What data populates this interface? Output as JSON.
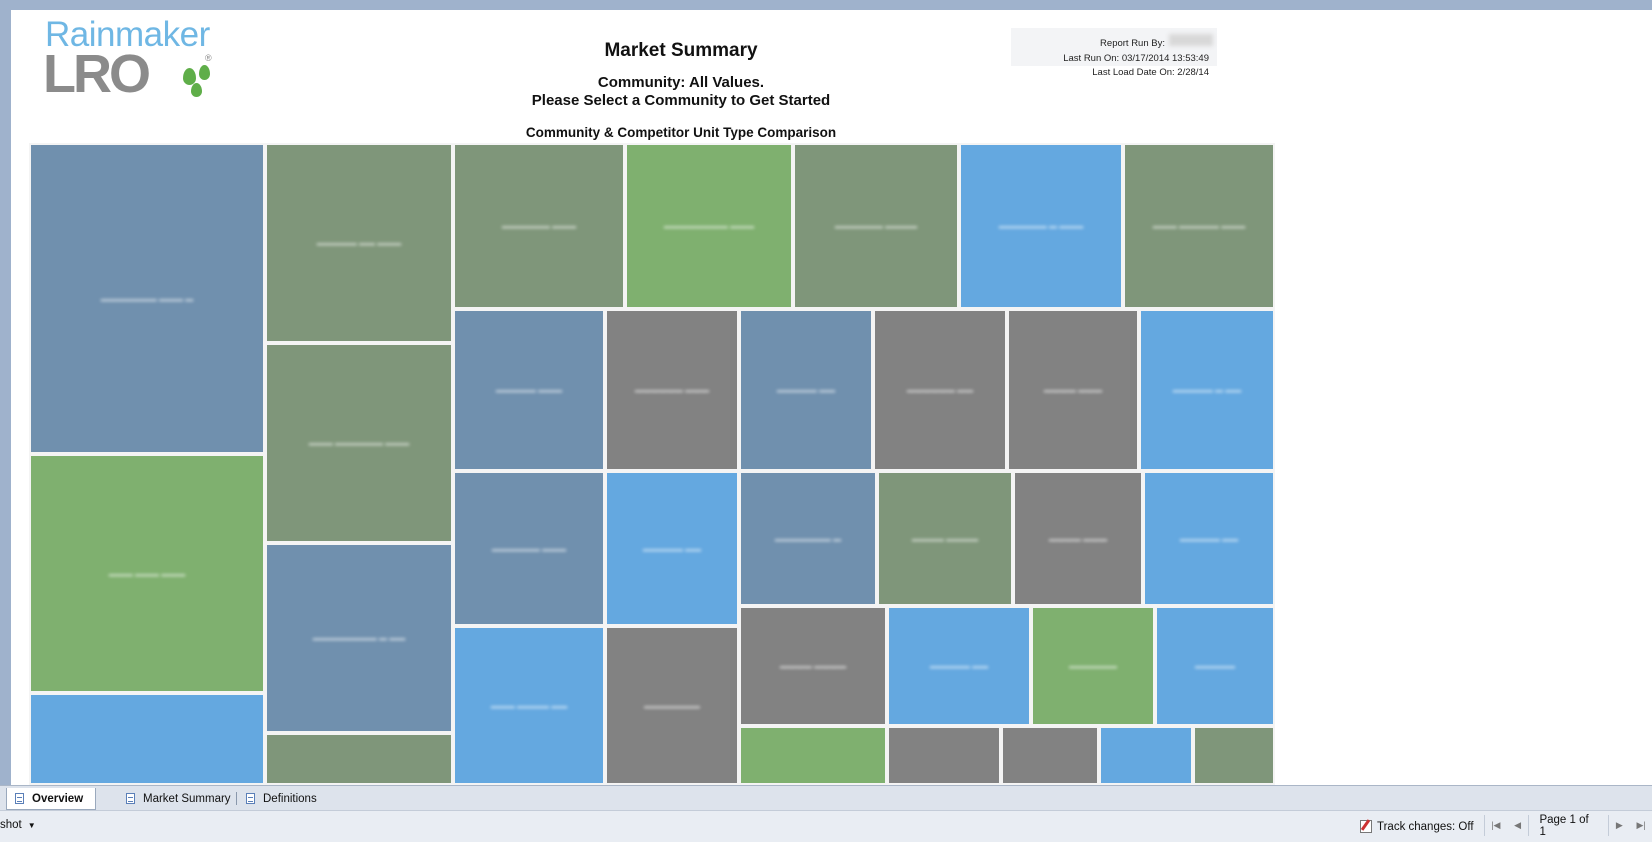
{
  "report": {
    "title": "Market Summary",
    "community_line": "Community: All Values.",
    "prompt_line": "Please Select a Community to Get Started",
    "chart_title": "Community & Competitor Unit Type Comparison",
    "run_by_label": "Report Run By:",
    "last_run": "Last Run On: 03/17/2014 13:53:49",
    "last_load": "Last Load Date On: 2/28/14"
  },
  "logo": {
    "line1": "Rainmaker",
    "line2": "LRO",
    "reg": "®"
  },
  "colors": {
    "slate_blue": "#7090ae",
    "sage_green": "#7f967a",
    "green": "#7fb06f",
    "sky_blue": "#64a8e0",
    "gray": "#828282"
  },
  "tabs": [
    {
      "label": "Overview",
      "active": true
    },
    {
      "label": "Market Summary",
      "active": false
    },
    {
      "label": "Definitions",
      "active": false
    }
  ],
  "status": {
    "left_text": "shot",
    "track_changes": "Track changes: Off",
    "page": "Page 1 of 1"
  },
  "icons": {
    "export": "export-icon",
    "tab": "report-page-icon",
    "track": "track-changes-icon",
    "first": "first-page-icon",
    "prev": "previous-page-icon",
    "next": "next-page-icon",
    "last": "last-page-icon"
  }
}
